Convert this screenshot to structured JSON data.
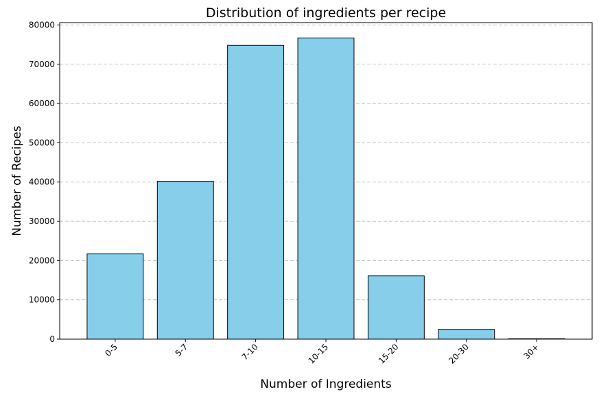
{
  "chart_data": {
    "type": "bar",
    "title": "Distribution of ingredients per recipe",
    "xlabel": "Number of Ingredients",
    "ylabel": "Number of Recipes",
    "categories": [
      "0-5",
      "5-7",
      "7-10",
      "10-15",
      "15-20",
      "20-30",
      "30+"
    ],
    "values": [
      21700,
      40200,
      74800,
      76700,
      16100,
      2500,
      100
    ],
    "ylim": [
      0,
      80600
    ],
    "yticks": [
      0,
      10000,
      20000,
      30000,
      40000,
      50000,
      60000,
      70000,
      80000
    ],
    "grid": "y-dashed",
    "bar_color": "#87ceeb",
    "edge_color": "#000000",
    "grid_color": "#b0b0b0"
  }
}
